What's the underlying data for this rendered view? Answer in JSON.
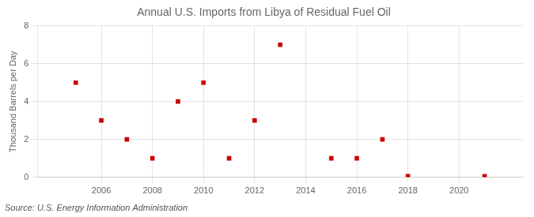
{
  "chart_data": {
    "type": "scatter",
    "title": "Annual U.S. Imports from Libya of Residual Fuel Oil",
    "ylabel": "Thousand Barrels per Day",
    "annotation": "Source: U.S. Energy Information Administration",
    "x": [
      2005,
      2006,
      2007,
      2008,
      2009,
      2010,
      2011,
      2012,
      2013,
      2015,
      2016,
      2017,
      2018,
      2021
    ],
    "values": [
      5,
      3,
      2,
      1,
      4,
      5,
      1,
      3,
      7,
      1,
      1,
      2,
      0.05,
      0.05
    ],
    "color": "#cc0000",
    "marker": "square",
    "xlim": [
      2003.5,
      2022.5
    ],
    "xticks": [
      2006,
      2008,
      2010,
      2012,
      2014,
      2016,
      2018,
      2020
    ],
    "ylim": [
      0,
      8
    ],
    "yticks": [
      0,
      2,
      4,
      6,
      8
    ],
    "grid": true
  }
}
